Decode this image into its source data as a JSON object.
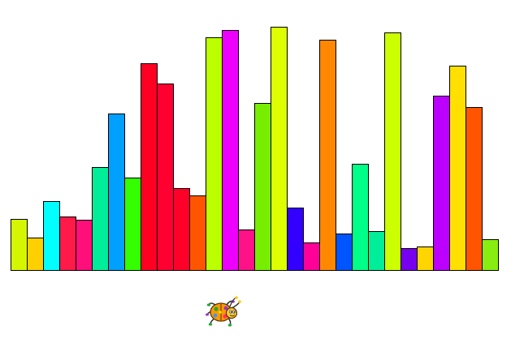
{
  "game": {
    "bars": [
      {
        "value": 63,
        "color": "#d4f700"
      },
      {
        "value": 40,
        "color": "#ffd000"
      },
      {
        "value": 85,
        "color": "#00ffff"
      },
      {
        "value": 66,
        "color": "#ff1a4a"
      },
      {
        "value": 62,
        "color": "#ff0f7a"
      },
      {
        "value": 127,
        "color": "#00ee99"
      },
      {
        "value": 193,
        "color": "#00a0ff"
      },
      {
        "value": 114,
        "color": "#33ff00"
      },
      {
        "value": 255,
        "color": "#ff0022"
      },
      {
        "value": 230,
        "color": "#ff0030"
      },
      {
        "value": 101,
        "color": "#ff0028"
      },
      {
        "value": 92,
        "color": "#ff5500"
      },
      {
        "value": 287,
        "color": "#bbff00"
      },
      {
        "value": 296,
        "color": "#ee00ff"
      },
      {
        "value": 50,
        "color": "#ff1188"
      },
      {
        "value": 206,
        "color": "#77ee00"
      },
      {
        "value": 300,
        "color": "#ddff00"
      },
      {
        "value": 77,
        "color": "#3300ff"
      },
      {
        "value": 34,
        "color": "#ff0099"
      },
      {
        "value": 284,
        "color": "#ff8800"
      },
      {
        "value": 45,
        "color": "#0055ff"
      },
      {
        "value": 131,
        "color": "#00ff88"
      },
      {
        "value": 48,
        "color": "#00ee99"
      },
      {
        "value": 293,
        "color": "#ccff00"
      },
      {
        "value": 27,
        "color": "#7700ee"
      },
      {
        "value": 29,
        "color": "#ffd500"
      },
      {
        "value": 215,
        "color": "#bb00ff"
      },
      {
        "value": 252,
        "color": "#ffe000"
      },
      {
        "value": 201,
        "color": "#ff5500"
      },
      {
        "value": 38,
        "color": "#88ee11"
      }
    ],
    "bug_icon": "ladybug-icon"
  }
}
